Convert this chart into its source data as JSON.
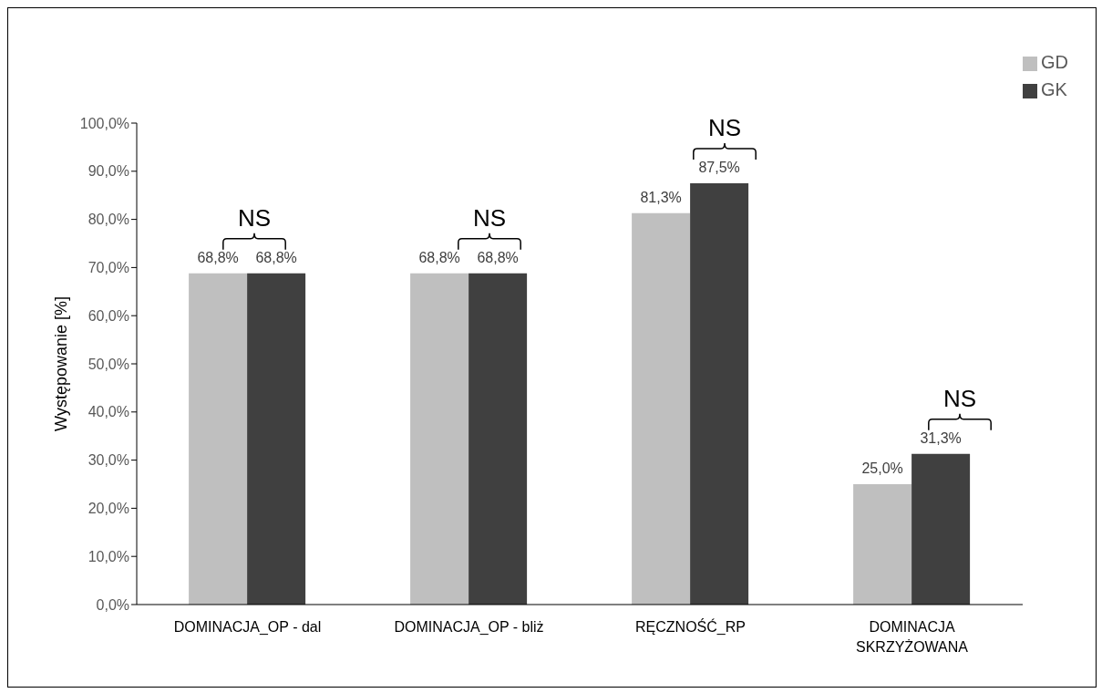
{
  "chart_data": {
    "type": "bar",
    "ylabel": "Występowanie [%]",
    "categories": [
      "DOMINACJA_OP - dal",
      "DOMINACJA_OP - bliż",
      "RĘCZNOŚĆ_RP",
      "DOMINACJA SKRZYŻOWANA"
    ],
    "series": [
      {
        "name": "GD",
        "color": "#bfbfbf",
        "values": [
          68.8,
          68.8,
          81.3,
          25.0
        ],
        "value_labels": [
          "68,8%",
          "68,8%",
          "81,3%",
          "25,0%"
        ]
      },
      {
        "name": "GK",
        "color": "#404040",
        "values": [
          68.8,
          68.8,
          87.5,
          31.3
        ],
        "value_labels": [
          "68,8%",
          "68,8%",
          "87,5%",
          "31,3%"
        ]
      }
    ],
    "ylim": [
      0,
      100
    ],
    "yticks": [
      {
        "value": 0,
        "label": "0,0%"
      },
      {
        "value": 10,
        "label": "10,0%"
      },
      {
        "value": 20,
        "label": "20,0%"
      },
      {
        "value": 30,
        "label": "30,0%"
      },
      {
        "value": 40,
        "label": "40,0%"
      },
      {
        "value": 50,
        "label": "50,0%"
      },
      {
        "value": 60,
        "label": "60,0%"
      },
      {
        "value": 70,
        "label": "70,0%"
      },
      {
        "value": 80,
        "label": "80,0%"
      },
      {
        "value": 90,
        "label": "90,0%"
      },
      {
        "value": 100,
        "label": "100,0%"
      }
    ],
    "grid": false,
    "legend": "top right",
    "annotations": [
      "NS",
      "NS",
      "NS",
      "NS"
    ]
  }
}
